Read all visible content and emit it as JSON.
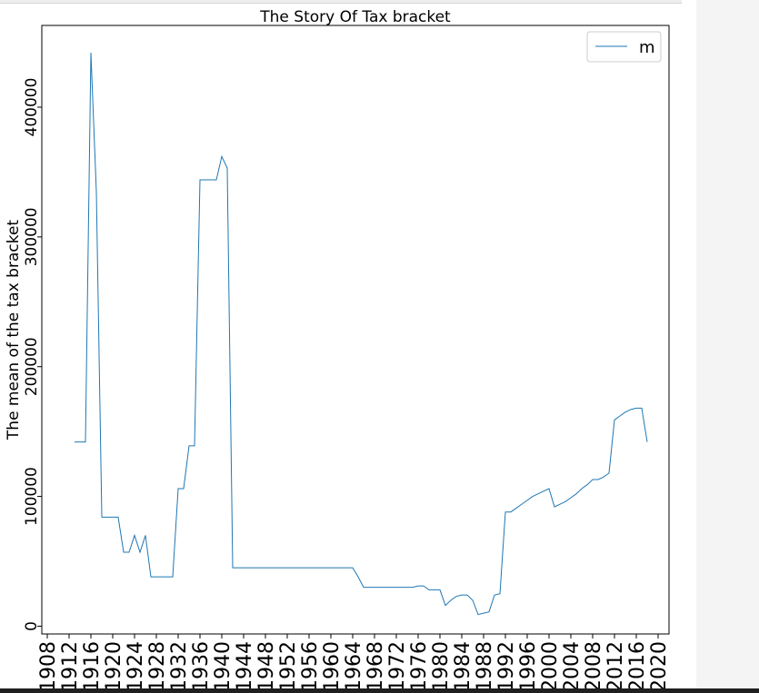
{
  "chart_data": {
    "type": "line",
    "title": "The Story Of Tax bracket",
    "xlabel": "",
    "ylabel": "The mean of the tax bracket",
    "xlim": [
      1907,
      1909.5
    ],
    "ylim": [
      -6000,
      463000
    ],
    "xlim_real": [
      1907,
      2022
    ],
    "yticks": [
      0,
      100000,
      200000,
      300000,
      400000
    ],
    "xticks": [
      1908,
      1912,
      1916,
      1920,
      1924,
      1928,
      1932,
      1936,
      1940,
      1944,
      1948,
      1952,
      1956,
      1960,
      1964,
      1968,
      1972,
      1976,
      1980,
      1984,
      1988,
      1992,
      1996,
      2000,
      2004,
      2008,
      2012,
      2016,
      2020
    ],
    "grid": false,
    "legend_position": "top-right",
    "series": [
      {
        "name": "m",
        "color": "#1f77b4",
        "x": [
          1913,
          1914,
          1915,
          1916,
          1917,
          1918,
          1919,
          1920,
          1921,
          1922,
          1923,
          1924,
          1925,
          1926,
          1927,
          1928,
          1929,
          1930,
          1931,
          1932,
          1933,
          1934,
          1935,
          1936,
          1937,
          1938,
          1939,
          1940,
          1941,
          1942,
          1943,
          1944,
          1950,
          1955,
          1960,
          1963,
          1964,
          1965,
          1966,
          1967,
          1970,
          1975,
          1976,
          1977,
          1978,
          1979,
          1980,
          1981,
          1982,
          1983,
          1984,
          1985,
          1986,
          1987,
          1988,
          1989,
          1990,
          1991,
          1992,
          1993,
          1994,
          1995,
          1996,
          1997,
          1998,
          1999,
          2000,
          2001,
          2002,
          2003,
          2004,
          2005,
          2006,
          2007,
          2008,
          2009,
          2010,
          2011,
          2012,
          2013,
          2014,
          2015,
          2016,
          2017,
          2018
        ],
        "y": [
          142000,
          142000,
          142000,
          442000,
          335000,
          84000,
          84000,
          84000,
          84000,
          57000,
          57000,
          70000,
          57000,
          70000,
          38000,
          38000,
          38000,
          38000,
          38000,
          106000,
          106000,
          139000,
          139000,
          344000,
          344000,
          344000,
          344000,
          362000,
          353000,
          45000,
          45000,
          45000,
          45000,
          45000,
          45000,
          45000,
          45000,
          38000,
          30000,
          30000,
          30000,
          30000,
          31000,
          31000,
          28000,
          28000,
          28000,
          16000,
          20000,
          23000,
          24000,
          24000,
          20000,
          9000,
          10000,
          11000,
          24000,
          25000,
          88000,
          88000,
          91000,
          94000,
          97000,
          100000,
          102000,
          104000,
          106000,
          92000,
          94000,
          96000,
          99000,
          102000,
          106000,
          109000,
          113000,
          113000,
          115000,
          118000,
          159000,
          162000,
          165000,
          167000,
          168000,
          168000,
          142000
        ]
      }
    ]
  }
}
